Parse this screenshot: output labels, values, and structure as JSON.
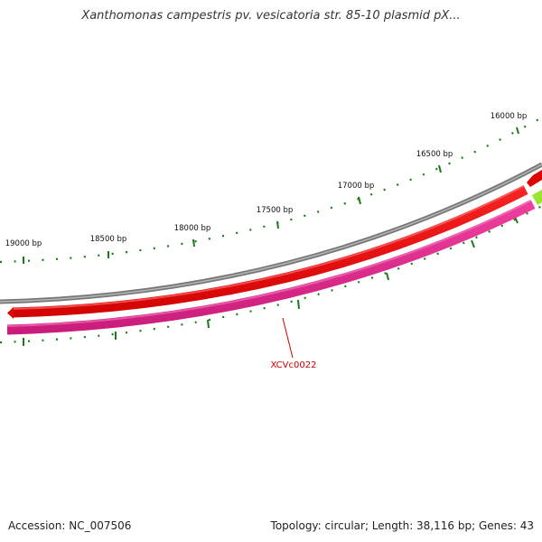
{
  "title": "Xanthomonas campestris pv. vesicatoria str. 85-10 plasmid pX...",
  "footer": {
    "accession": "Accession: NC_007506",
    "summary": "Topology: circular; Length: 38,116 bp; Genes: 43"
  },
  "ruler": {
    "labels": [
      "16000 bp",
      "16500 bp",
      "17000 bp",
      "17500 bp",
      "18000 bp",
      "18500 bp",
      "19000 bp"
    ]
  },
  "features": {
    "callout_label": "XCVc0022"
  },
  "colors": {
    "backbone": "#8c8c8c",
    "forward_gene": "#e00000",
    "reverse_gene": "#e0208a",
    "other_gene": "#99e62e",
    "tick": "#1a7a1a",
    "callout": "#cc0000"
  }
}
